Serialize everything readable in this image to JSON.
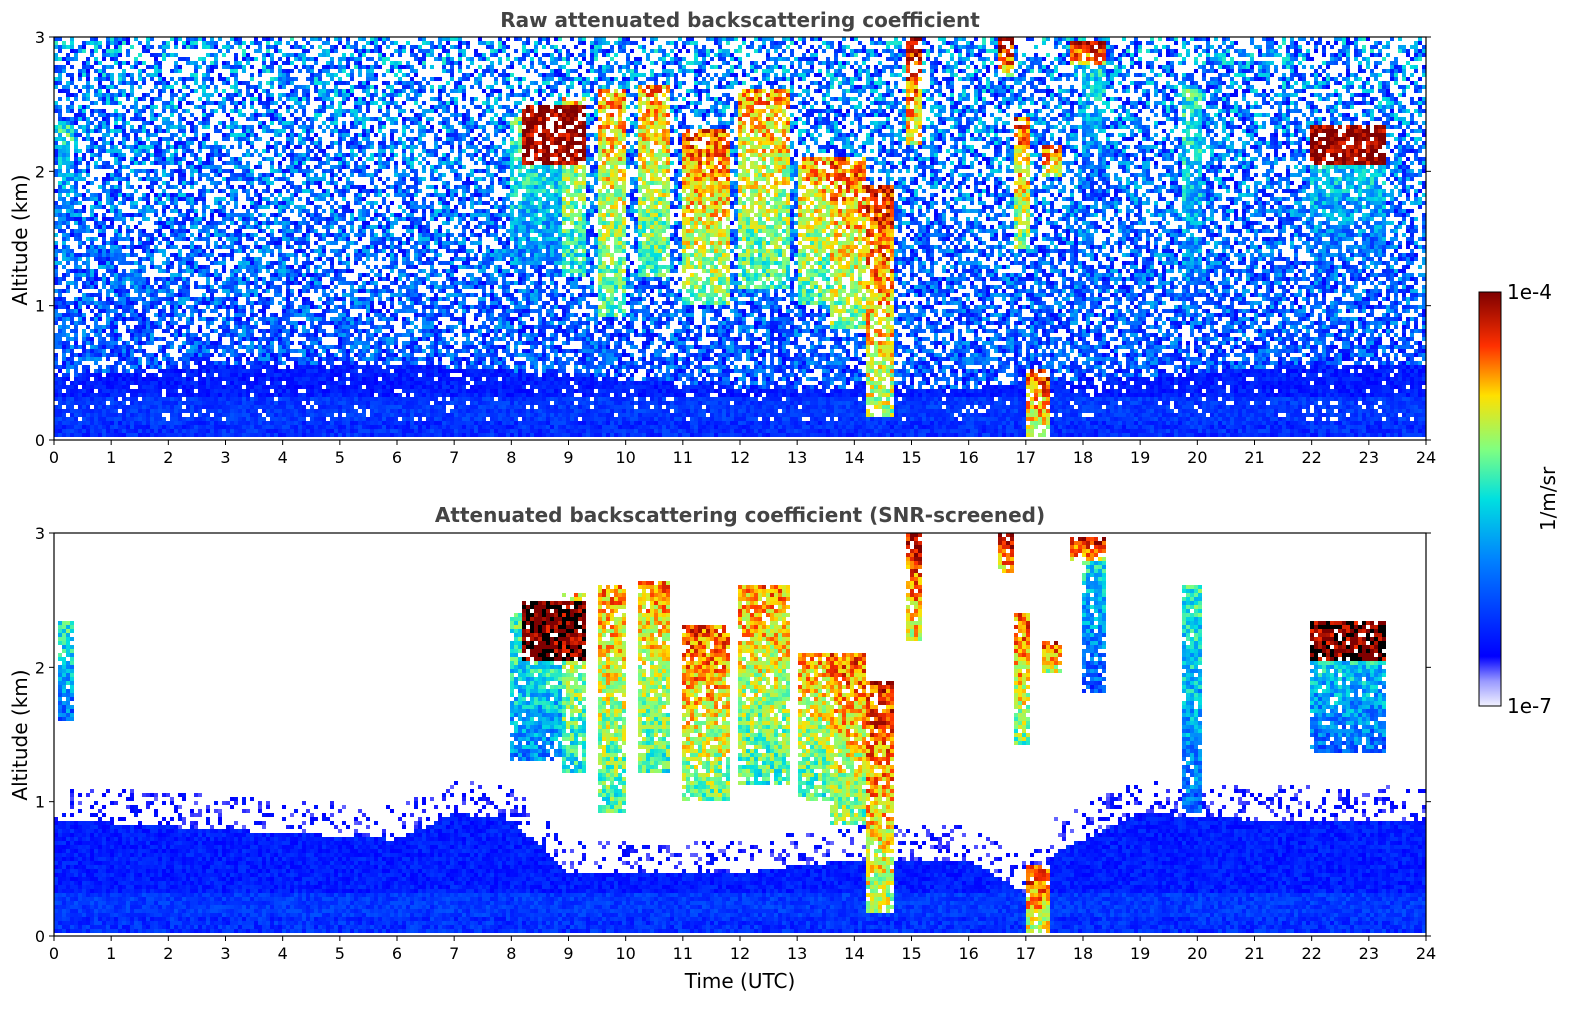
{
  "chart_data": [
    {
      "type": "heatmap",
      "title": "Raw attenuated backscattering coefficient",
      "xlabel": "",
      "ylabel": "Altitude (km)",
      "xlim": [
        0,
        24
      ],
      "ylim": [
        0,
        3
      ],
      "xticks": [
        "0",
        "1",
        "2",
        "3",
        "4",
        "5",
        "6",
        "7",
        "8",
        "9",
        "10",
        "11",
        "12",
        "13",
        "14",
        "15",
        "16",
        "17",
        "18",
        "19",
        "20",
        "21",
        "22",
        "23",
        "24"
      ],
      "yticks": [
        "0",
        "1",
        "2",
        "3"
      ],
      "screened": false,
      "features": [
        {
          "kind": "cloud",
          "x0": 0.1,
          "x1": 0.35,
          "ymin": 1.6,
          "ymax": 2.35,
          "level": 0.55
        },
        {
          "kind": "cloud",
          "x0": 8.0,
          "x1": 8.9,
          "ymin": 1.3,
          "ymax": 2.4,
          "level": 0.6
        },
        {
          "kind": "cloud",
          "x0": 8.9,
          "x1": 9.3,
          "ymin": 1.2,
          "ymax": 2.55,
          "level": 0.75
        },
        {
          "kind": "cloud",
          "x0": 9.5,
          "x1": 10.0,
          "ymin": 0.9,
          "ymax": 2.6,
          "level": 0.8
        },
        {
          "kind": "cloud",
          "x0": 10.2,
          "x1": 10.8,
          "ymin": 1.2,
          "ymax": 2.65,
          "level": 0.8
        },
        {
          "kind": "cloud",
          "x0": 11.0,
          "x1": 11.8,
          "ymin": 1.0,
          "ymax": 2.3,
          "level": 0.85
        },
        {
          "kind": "cloud",
          "x0": 12.0,
          "x1": 12.9,
          "ymin": 1.1,
          "ymax": 2.6,
          "level": 0.8
        },
        {
          "kind": "cloud",
          "x0": 13.0,
          "x1": 13.6,
          "ymin": 1.0,
          "ymax": 2.1,
          "level": 0.8
        },
        {
          "kind": "cloud",
          "x0": 13.6,
          "x1": 14.2,
          "ymin": 0.8,
          "ymax": 2.1,
          "level": 0.85
        },
        {
          "kind": "cloud",
          "x0": 14.2,
          "x1": 14.7,
          "ymin": 0.15,
          "ymax": 1.9,
          "level": 0.9
        },
        {
          "kind": "cloud",
          "x0": 14.9,
          "x1": 15.2,
          "ymin": 2.2,
          "ymax": 3.0,
          "level": 0.95
        },
        {
          "kind": "cloud",
          "x0": 16.5,
          "x1": 16.8,
          "ymin": 2.7,
          "ymax": 3.0,
          "level": 0.98
        },
        {
          "kind": "cloud",
          "x0": 16.8,
          "x1": 17.1,
          "ymin": 1.4,
          "ymax": 2.4,
          "level": 0.85
        },
        {
          "kind": "cloud",
          "x0": 17.0,
          "x1": 17.4,
          "ymin": 0.0,
          "ymax": 0.5,
          "level": 0.9
        },
        {
          "kind": "cloud",
          "x0": 17.3,
          "x1": 17.6,
          "ymin": 1.95,
          "ymax": 2.2,
          "level": 0.9
        },
        {
          "kind": "cloud",
          "x0": 17.8,
          "x1": 18.4,
          "ymin": 2.8,
          "ymax": 2.98,
          "level": 1.0
        },
        {
          "kind": "cloud",
          "x0": 18.0,
          "x1": 18.4,
          "ymin": 1.8,
          "ymax": 2.8,
          "level": 0.5
        },
        {
          "kind": "cloud",
          "x0": 19.7,
          "x1": 20.1,
          "ymin": 0.9,
          "ymax": 2.6,
          "level": 0.55
        },
        {
          "kind": "cloud",
          "x0": 22.0,
          "x1": 23.3,
          "ymin": 1.35,
          "ymax": 2.35,
          "level": 0.55
        },
        {
          "kind": "cloudtop",
          "x0": 22.0,
          "x1": 23.3,
          "ymin": 2.05,
          "ymax": 2.35,
          "level": 1.0
        },
        {
          "kind": "cloudtop",
          "x0": 8.2,
          "x1": 9.3,
          "ymin": 2.05,
          "ymax": 2.5,
          "level": 1.0
        }
      ]
    },
    {
      "type": "heatmap",
      "title": "Attenuated backscattering coefficient (SNR-screened)",
      "xlabel": "Time (UTC)",
      "ylabel": "Altitude (km)",
      "xlim": [
        0,
        24
      ],
      "ylim": [
        0,
        3
      ],
      "xticks": [
        "0",
        "1",
        "2",
        "3",
        "4",
        "5",
        "6",
        "7",
        "8",
        "9",
        "10",
        "11",
        "12",
        "13",
        "14",
        "15",
        "16",
        "17",
        "18",
        "19",
        "20",
        "21",
        "22",
        "23",
        "24"
      ],
      "yticks": [
        "0",
        "1",
        "2",
        "3"
      ],
      "screened": true,
      "boundary_layer_top_km": [
        [
          0,
          0.85
        ],
        [
          2,
          0.8
        ],
        [
          4,
          0.75
        ],
        [
          6,
          0.7
        ],
        [
          7,
          0.9
        ],
        [
          8,
          0.85
        ],
        [
          9,
          0.45
        ],
        [
          12,
          0.45
        ],
        [
          14,
          0.55
        ],
        [
          16,
          0.55
        ],
        [
          17,
          0.3
        ],
        [
          17.5,
          0.6
        ],
        [
          19,
          0.9
        ],
        [
          21,
          0.85
        ],
        [
          24,
          0.85
        ]
      ],
      "features": "same as raw"
    }
  ],
  "colorbar": {
    "label": "1/m/sr",
    "min_label": "1e-7",
    "max_label": "1e-4",
    "scale": "log"
  }
}
